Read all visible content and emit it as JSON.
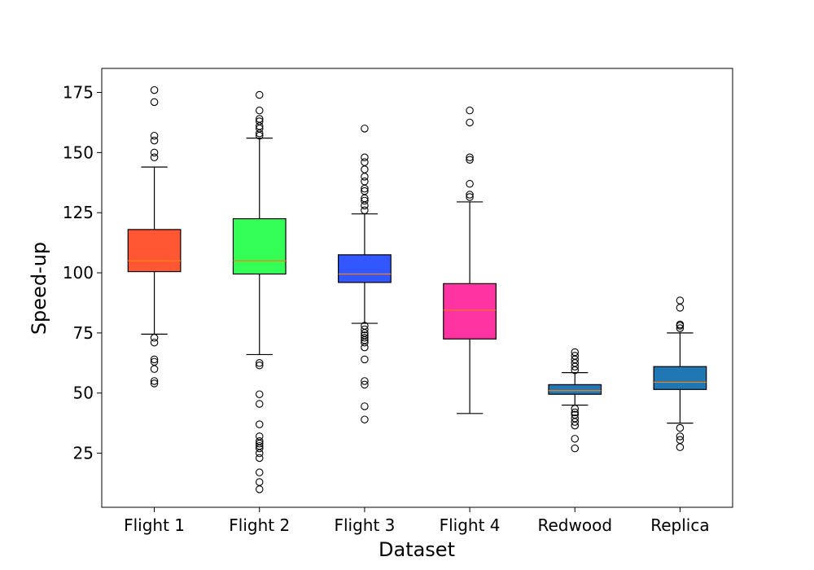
{
  "chart_data": {
    "type": "box",
    "xlabel": "Dataset",
    "ylabel": "Speed-up",
    "ylim": [
      2.5,
      185
    ],
    "yticks": [
      25,
      50,
      75,
      100,
      125,
      150,
      175
    ],
    "ytick_labels": [
      "25",
      "50",
      "75",
      "100",
      "125",
      "150",
      "175"
    ],
    "series": [
      {
        "name": "Flight 1",
        "color": "#ff5733",
        "whisker_low": 74.5,
        "q1": 100.5,
        "median": 105,
        "q3": 118,
        "whisker_high": 144,
        "outliers": [
          54,
          55,
          60,
          63,
          64,
          71,
          73,
          148,
          150,
          155,
          157,
          171,
          176
        ]
      },
      {
        "name": "Flight 2",
        "color": "#33ff57",
        "whisker_low": 66,
        "q1": 99.5,
        "median": 105,
        "q3": 122.5,
        "whisker_high": 156,
        "outliers": [
          10,
          13,
          17,
          23,
          25,
          27,
          28,
          29,
          30,
          32,
          37,
          45.5,
          49.5,
          61.5,
          62.5,
          157,
          158,
          160,
          161,
          163,
          164,
          167.5,
          174
        ]
      },
      {
        "name": "Flight 3",
        "color": "#3357ff",
        "whisker_low": 79,
        "q1": 96,
        "median": 99.5,
        "q3": 107.5,
        "whisker_high": 124.5,
        "outliers": [
          39,
          44.5,
          53.5,
          55,
          64,
          69,
          71,
          72,
          73,
          74,
          75,
          76.5,
          78,
          126,
          128,
          130,
          131,
          134,
          135,
          138,
          140,
          143,
          146,
          148,
          160
        ]
      },
      {
        "name": "Flight 4",
        "color": "#ff33a1",
        "whisker_low": 41.5,
        "q1": 72.5,
        "median": 84.5,
        "q3": 95.5,
        "whisker_high": 129.5,
        "outliers": [
          131.5,
          132.5,
          137,
          147,
          148,
          162.5,
          167.5
        ]
      },
      {
        "name": "Redwood",
        "color": "#1f77b4",
        "whisker_low": 45,
        "q1": 49.5,
        "median": 51,
        "q3": 53.5,
        "whisker_high": 58.5,
        "outliers": [
          27,
          31,
          36.5,
          38,
          39.5,
          41,
          42,
          43.5,
          59.5,
          61,
          62.5,
          64,
          65.5,
          67
        ]
      },
      {
        "name": "Replica",
        "color": "#1f77b4",
        "whisker_low": 37.5,
        "q1": 51.5,
        "median": 54.5,
        "q3": 61,
        "whisker_high": 75,
        "outliers": [
          27.5,
          30.5,
          32,
          35.5,
          77,
          78,
          78.5,
          85.5,
          88.5
        ]
      }
    ]
  }
}
